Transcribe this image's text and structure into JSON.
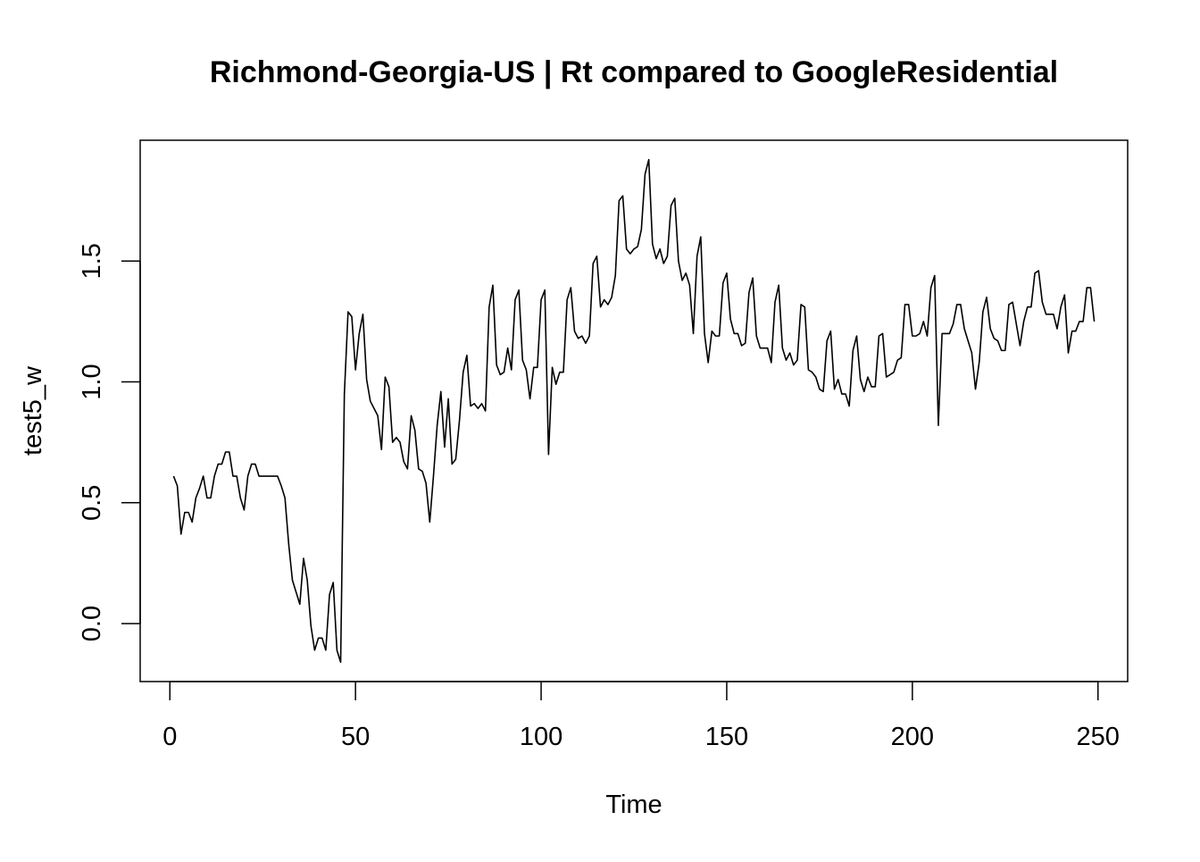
{
  "chart_data": {
    "type": "line",
    "title": "Richmond-Georgia-US | Rt compared to GoogleResidential",
    "xlabel": "Time",
    "ylabel": "test5_w",
    "xlim": [
      -8,
      258
    ],
    "ylim": [
      -0.24,
      2.0
    ],
    "x_ticks": [
      0,
      50,
      100,
      150,
      200,
      250
    ],
    "y_ticks": [
      0.0,
      0.5,
      1.0,
      1.5
    ],
    "x_tick_labels": [
      "0",
      "50",
      "100",
      "150",
      "200",
      "250"
    ],
    "y_tick_labels": [
      "0.0",
      "0.5",
      "1.0",
      "1.5"
    ],
    "grid": false,
    "legend": "none",
    "line_color": "#000000",
    "series": [
      {
        "x_start": 1,
        "values": [
          0.61,
          0.57,
          0.37,
          0.46,
          0.46,
          0.42,
          0.52,
          0.56,
          0.61,
          0.52,
          0.52,
          0.61,
          0.66,
          0.66,
          0.71,
          0.71,
          0.61,
          0.61,
          0.52,
          0.47,
          0.61,
          0.66,
          0.66,
          0.61,
          0.61,
          0.61,
          0.61,
          0.61,
          0.61,
          0.57,
          0.52,
          0.33,
          0.18,
          0.13,
          0.08,
          0.27,
          0.18,
          -0.01,
          -0.11,
          -0.06,
          -0.06,
          -0.11,
          0.12,
          0.17,
          -0.11,
          -0.16,
          0.95,
          1.29,
          1.27,
          1.05,
          1.2,
          1.28,
          1.01,
          0.92,
          0.89,
          0.86,
          0.72,
          1.02,
          0.98,
          0.75,
          0.77,
          0.75,
          0.67,
          0.64,
          0.86,
          0.8,
          0.64,
          0.63,
          0.58,
          0.42,
          0.61,
          0.82,
          0.96,
          0.73,
          0.93,
          0.66,
          0.68,
          0.84,
          1.04,
          1.11,
          0.9,
          0.91,
          0.89,
          0.91,
          0.88,
          1.31,
          1.4,
          1.07,
          1.03,
          1.04,
          1.14,
          1.05,
          1.34,
          1.38,
          1.09,
          1.05,
          0.93,
          1.06,
          1.06,
          1.34,
          1.38,
          0.7,
          1.06,
          0.99,
          1.04,
          1.04,
          1.34,
          1.39,
          1.21,
          1.18,
          1.19,
          1.16,
          1.19,
          1.49,
          1.52,
          1.31,
          1.34,
          1.32,
          1.35,
          1.44,
          1.75,
          1.77,
          1.55,
          1.53,
          1.55,
          1.56,
          1.63,
          1.86,
          1.92,
          1.57,
          1.51,
          1.55,
          1.49,
          1.52,
          1.73,
          1.76,
          1.5,
          1.42,
          1.45,
          1.4,
          1.2,
          1.52,
          1.6,
          1.2,
          1.08,
          1.21,
          1.19,
          1.19,
          1.41,
          1.45,
          1.26,
          1.2,
          1.2,
          1.15,
          1.16,
          1.37,
          1.43,
          1.19,
          1.14,
          1.14,
          1.14,
          1.08,
          1.33,
          1.4,
          1.14,
          1.09,
          1.12,
          1.07,
          1.09,
          1.32,
          1.31,
          1.05,
          1.04,
          1.02,
          0.97,
          0.96,
          1.17,
          1.21,
          0.97,
          1.01,
          0.95,
          0.95,
          0.9,
          1.13,
          1.19,
          1.01,
          0.96,
          1.02,
          0.98,
          0.98,
          1.19,
          1.2,
          1.02,
          1.03,
          1.04,
          1.09,
          1.1,
          1.32,
          1.32,
          1.19,
          1.19,
          1.2,
          1.25,
          1.19,
          1.39,
          1.44,
          0.82,
          1.2,
          1.2,
          1.2,
          1.24,
          1.32,
          1.32,
          1.22,
          1.17,
          1.12,
          0.97,
          1.08,
          1.29,
          1.35,
          1.22,
          1.18,
          1.17,
          1.13,
          1.13,
          1.32,
          1.33,
          1.24,
          1.15,
          1.25,
          1.31,
          1.31,
          1.45,
          1.46,
          1.33,
          1.28,
          1.28,
          1.28,
          1.22,
          1.31,
          1.36,
          1.12,
          1.21,
          1.21,
          1.25,
          1.25,
          1.39,
          1.39,
          1.25
        ]
      }
    ]
  }
}
